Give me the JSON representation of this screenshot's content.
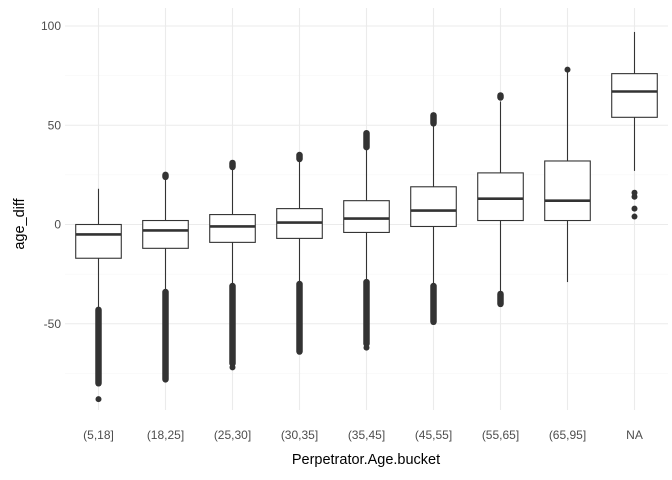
{
  "chart_data": {
    "type": "boxplot",
    "title": "",
    "xlabel": "Perpetrator.Age.bucket",
    "ylabel": "age_diff",
    "ylim": [
      -97,
      103
    ],
    "yticks": [
      -50,
      0,
      50,
      100
    ],
    "yticks_labels": [
      "-50",
      "0",
      "50",
      "100"
    ],
    "y_minor_ticks": [
      -75,
      -25,
      25,
      75
    ],
    "grid": true,
    "categories": [
      "(5,18]",
      "(18,25]",
      "(25,30]",
      "(30,35]",
      "(35,45]",
      "(45,55]",
      "(55,65]",
      "(65,95]",
      "NA"
    ],
    "boxes": [
      {
        "category": "(5,18]",
        "whisker_low": -42,
        "q1": -17,
        "median": -5,
        "q3": 0,
        "whisker_high": 18,
        "outliers_low": [
          -43,
          -80
        ],
        "outliers_high": [],
        "points": [
          -88
        ]
      },
      {
        "category": "(18,25]",
        "whisker_low": -33,
        "q1": -12,
        "median": -3,
        "q3": 2,
        "whisker_high": 23,
        "outliers_low": [
          -34,
          -78
        ],
        "outliers_high": [
          24,
          25
        ],
        "points": []
      },
      {
        "category": "(25,30]",
        "whisker_low": -30,
        "q1": -9,
        "median": -1,
        "q3": 5,
        "whisker_high": 28,
        "outliers_low": [
          -31,
          -70
        ],
        "outliers_high": [
          29,
          31
        ],
        "points": [
          -72
        ]
      },
      {
        "category": "(30,35]",
        "whisker_low": -29,
        "q1": -7,
        "median": 1,
        "q3": 8,
        "whisker_high": 32,
        "outliers_low": [
          -30,
          -64
        ],
        "outliers_high": [
          33,
          35
        ],
        "points": []
      },
      {
        "category": "(35,45]",
        "whisker_low": -28,
        "q1": -4,
        "median": 3,
        "q3": 12,
        "whisker_high": 38,
        "outliers_low": [
          -29,
          -60
        ],
        "outliers_high": [
          39,
          46
        ],
        "points": [
          -62
        ]
      },
      {
        "category": "(45,55]",
        "whisker_low": -30,
        "q1": -1,
        "median": 7,
        "q3": 19,
        "whisker_high": 50,
        "outliers_low": [
          -31,
          -49
        ],
        "outliers_high": [
          51,
          55
        ],
        "points": []
      },
      {
        "category": "(55,65]",
        "whisker_low": -34,
        "q1": 2,
        "median": 13,
        "q3": 26,
        "whisker_high": 62,
        "outliers_low": [
          -35,
          -40
        ],
        "outliers_high": [
          64,
          65
        ],
        "points": []
      },
      {
        "category": "(65,95]",
        "whisker_low": -29,
        "q1": 2,
        "median": 12,
        "q3": 32,
        "whisker_high": 77,
        "outliers_low": [],
        "outliers_high": [],
        "points": [
          78
        ]
      },
      {
        "category": "NA",
        "whisker_low": 27,
        "q1": 54,
        "median": 67,
        "q3": 76,
        "whisker_high": 97,
        "outliers_low": [],
        "outliers_high": [],
        "points": [
          16,
          14,
          8,
          4
        ]
      }
    ]
  }
}
